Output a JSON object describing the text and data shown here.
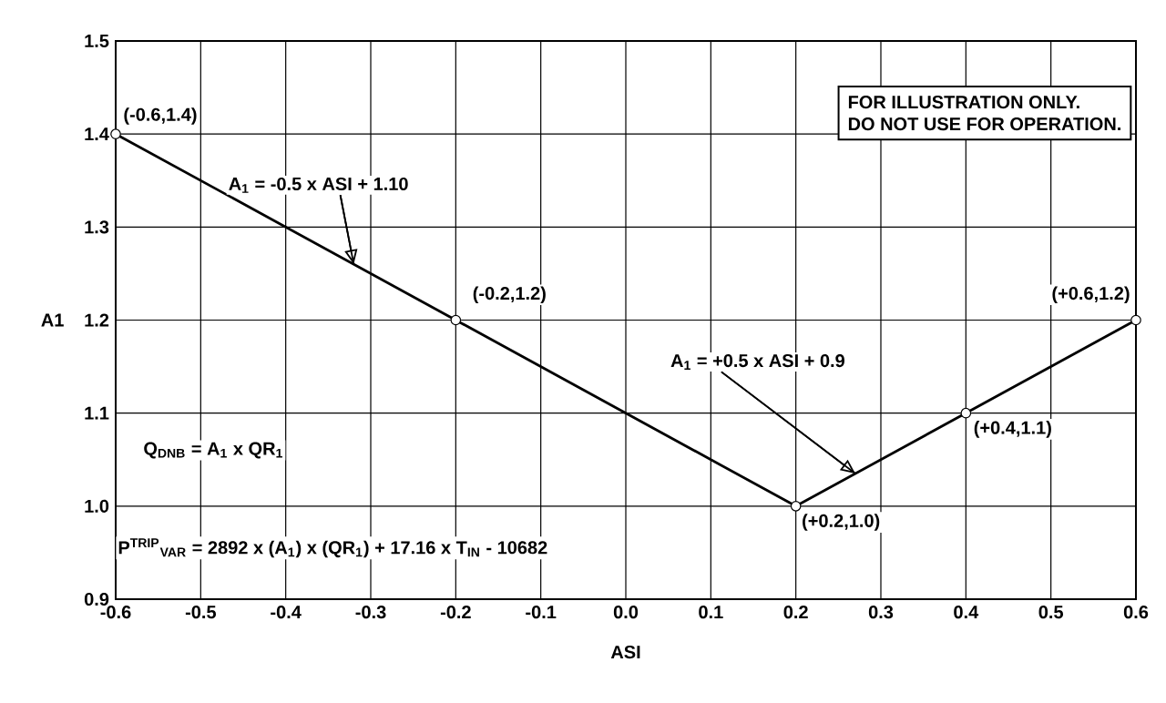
{
  "chart_data": {
    "type": "line",
    "xlabel": "ASI",
    "ylabel": "A1",
    "x": [
      -0.6,
      -0.2,
      0.2,
      0.4,
      0.6
    ],
    "series": [
      {
        "color": "#000000",
        "values": [
          1.4,
          1.2,
          1.0,
          1.1,
          1.2
        ]
      }
    ],
    "xlim": [
      -0.6,
      0.6
    ],
    "xticks": [
      -0.6,
      -0.5,
      -0.4,
      -0.3,
      -0.2,
      -0.1,
      {
        "value": 0,
        "label": "0.0"
      },
      0.1,
      0.2,
      0.3,
      0.4,
      0.5,
      0.6
    ],
    "ylim": [
      0.9,
      1.5
    ],
    "yticks": [
      0.9,
      {
        "value": 1.0,
        "label": "1.0"
      },
      1.1,
      1.2,
      1.3,
      1.4,
      1.5
    ],
    "grid": true,
    "marker": "circle",
    "line_style": "solid",
    "annotations": [
      {
        "text": "(-0.6,1.4)",
        "x": -0.6,
        "y": 1.4
      },
      {
        "text": "(-0.2,1.2)",
        "x": -0.2,
        "y": 1.2
      },
      {
        "text": "(+0.2,1.0)",
        "x": 0.2,
        "y": 1.0
      },
      {
        "text": "(+0.4,1.1)",
        "x": 0.4,
        "y": 1.1
      },
      {
        "text": "(+0.6,1.2)",
        "x": 0.6,
        "y": 1.2
      },
      {
        "text": "A$_{1}$ = -0.5 x ASI + 1.10",
        "x": -0.32,
        "y": 1.26
      },
      {
        "text": "A$_{1}$ = +0.5 x ASI + 0.9",
        "x": 0.27,
        "y": 1.035
      },
      "Q$_{DNB}$ = A$_{1}$ x QR$_{1}$",
      "P$^{TRIP}$$_{VAR}$ = 2892 x (A$_{1}$) x (QR$_{1}$) + 17.16 x T$_{IN}$ - 10682",
      "FOR ILLUSTRATION ONLY.",
      "DO NOT USE FOR OPERATION."
    ]
  }
}
